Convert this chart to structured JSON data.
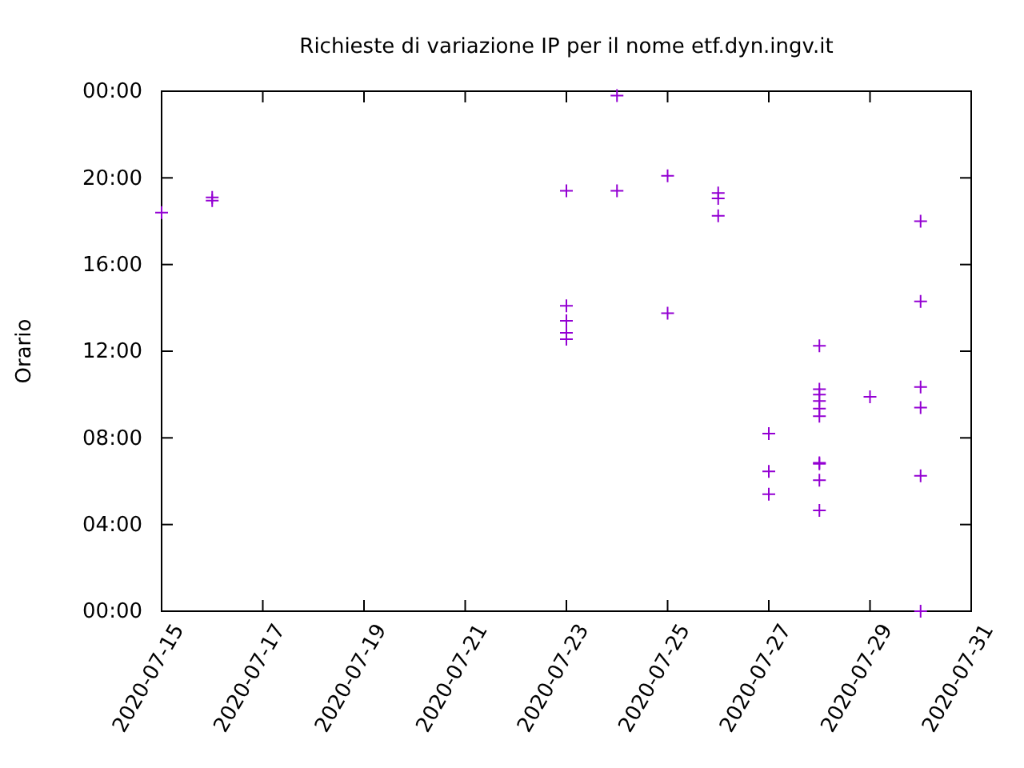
{
  "chart_data": {
    "type": "scatter",
    "title": "Richieste di variazione IP per il nome etf.dyn.ingv.it",
    "ylabel": "Orario",
    "x": [
      "2020-07-15",
      "2020-07-16",
      "2020-07-16",
      "2020-07-23",
      "2020-07-23",
      "2020-07-23",
      "2020-07-23",
      "2020-07-23",
      "2020-07-24",
      "2020-07-24",
      "2020-07-25",
      "2020-07-25",
      "2020-07-26",
      "2020-07-26",
      "2020-07-26",
      "2020-07-27",
      "2020-07-27",
      "2020-07-27",
      "2020-07-28",
      "2020-07-28",
      "2020-07-28",
      "2020-07-28",
      "2020-07-28",
      "2020-07-28",
      "2020-07-28",
      "2020-07-28",
      "2020-07-28",
      "2020-07-28",
      "2020-07-29",
      "2020-07-30",
      "2020-07-30",
      "2020-07-30",
      "2020-07-30",
      "2020-07-30",
      "2020-07-30"
    ],
    "series": [
      {
        "color": "#9400d3",
        "values": [
          18.4,
          19.1,
          18.95,
          19.4,
          14.1,
          13.4,
          12.85,
          12.55,
          23.8,
          19.4,
          20.1,
          13.75,
          19.3,
          19.05,
          18.25,
          8.2,
          6.45,
          5.4,
          12.25,
          10.25,
          10.0,
          9.7,
          9.35,
          9.0,
          6.85,
          6.8,
          6.05,
          4.65,
          9.9,
          18.0,
          14.3,
          10.35,
          9.4,
          6.25,
          0.0
        ]
      }
    ],
    "marker": "cross",
    "xlim": [
      "2020-07-15",
      "2020-07-31"
    ],
    "xticks": [
      "2020-07-15",
      "2020-07-17",
      "2020-07-19",
      "2020-07-21",
      "2020-07-23",
      "2020-07-25",
      "2020-07-27",
      "2020-07-29",
      "2020-07-31"
    ],
    "ylim": [
      0,
      24
    ],
    "yticks": [
      {
        "value": 0,
        "label": "00:00"
      },
      {
        "value": 4,
        "label": "04:00"
      },
      {
        "value": 8,
        "label": "08:00"
      },
      {
        "value": 12,
        "label": "12:00"
      },
      {
        "value": 16,
        "label": "16:00"
      },
      {
        "value": 20,
        "label": "20:00"
      },
      {
        "value": 24,
        "label": "00:00"
      }
    ]
  }
}
